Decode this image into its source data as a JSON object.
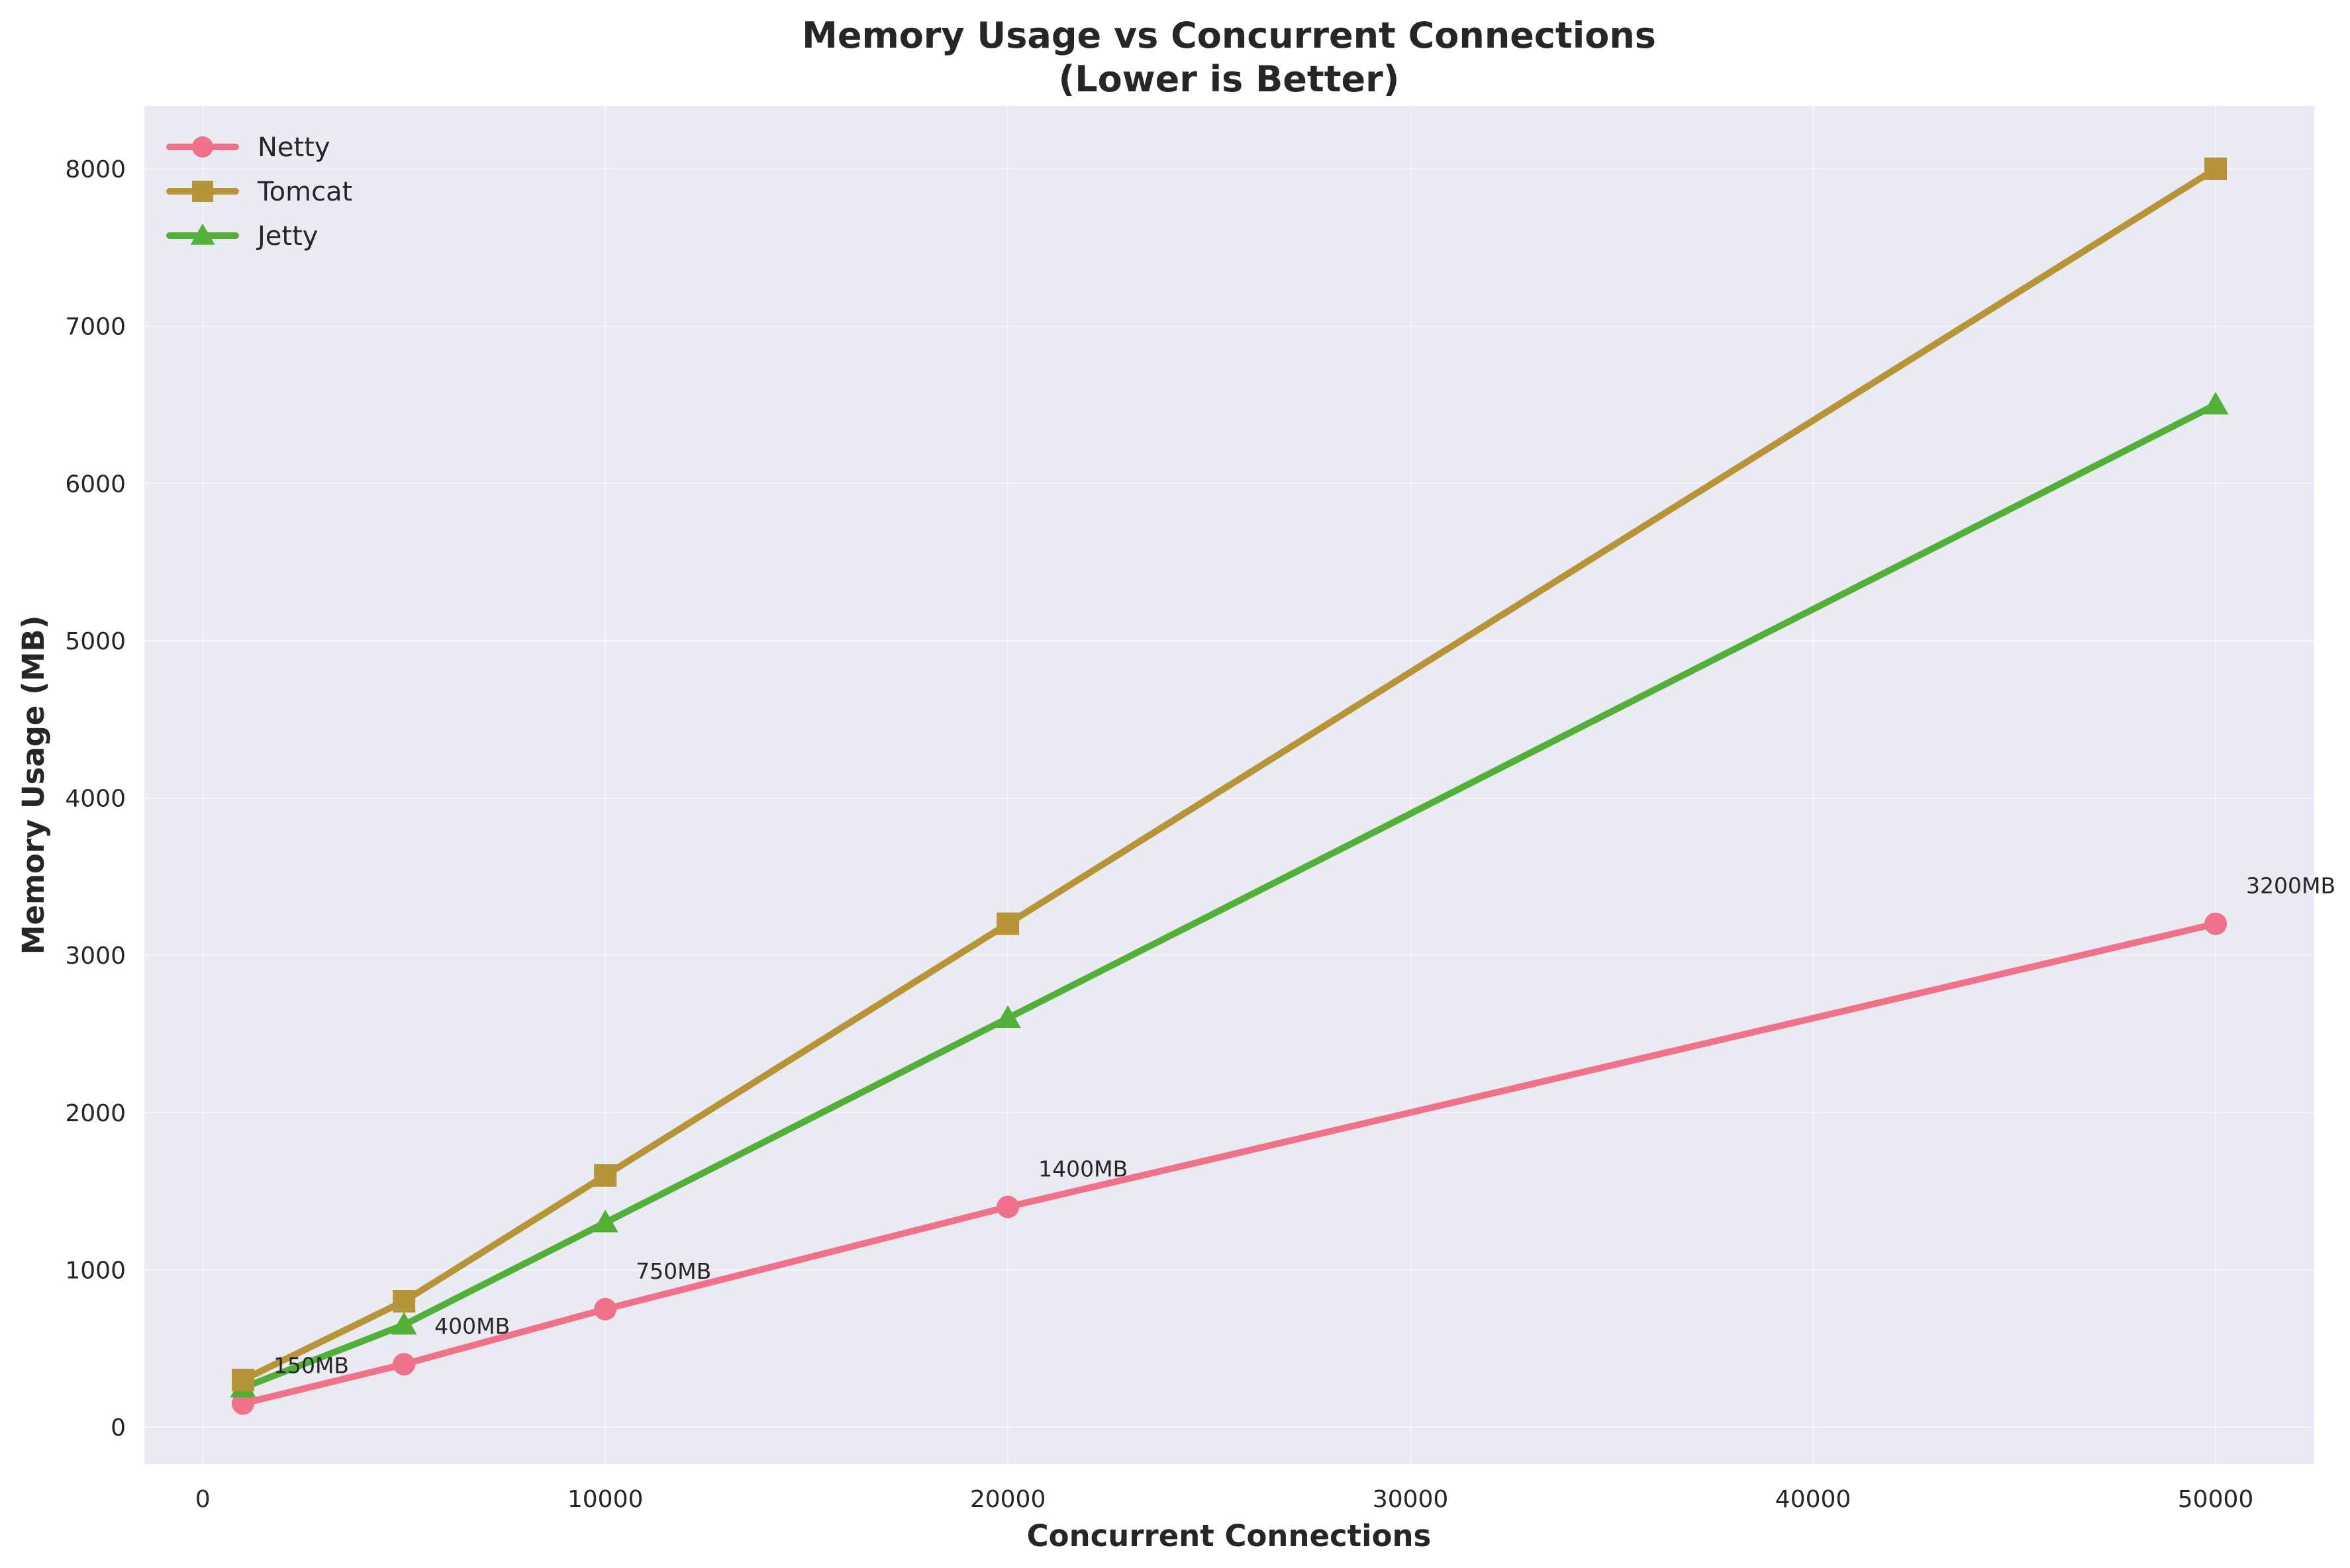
{
  "chart_data": {
    "type": "line",
    "title": "Memory Usage vs Concurrent Connections",
    "subtitle": "(Lower is Better)",
    "xlabel": "Concurrent Connections",
    "ylabel": "Memory Usage (MB)",
    "x": [
      1000,
      5000,
      10000,
      20000,
      50000
    ],
    "xlim": [
      -1450,
      52450
    ],
    "ylim": [
      -235,
      8400
    ],
    "xticks": [
      0,
      10000,
      20000,
      30000,
      40000,
      50000
    ],
    "yticks": [
      0,
      1000,
      2000,
      3000,
      4000,
      5000,
      6000,
      7000,
      8000
    ],
    "grid": true,
    "legend_position": "top-left",
    "series": [
      {
        "name": "Netty",
        "values": [
          150,
          400,
          750,
          1400,
          3200
        ],
        "color": "#f0718a",
        "marker": "circle"
      },
      {
        "name": "Tomcat",
        "values": [
          300,
          800,
          1600,
          3200,
          8000
        ],
        "color": "#b79438",
        "marker": "square"
      },
      {
        "name": "Jetty",
        "values": [
          250,
          650,
          1300,
          2600,
          6500
        ],
        "color": "#52b038",
        "marker": "triangle"
      }
    ],
    "annotations": [
      {
        "x": 1000,
        "y": 150,
        "text": "150MB"
      },
      {
        "x": 5000,
        "y": 400,
        "text": "400MB"
      },
      {
        "x": 10000,
        "y": 750,
        "text": "750MB"
      },
      {
        "x": 20000,
        "y": 1400,
        "text": "1400MB"
      },
      {
        "x": 50000,
        "y": 3200,
        "text": "3200MB"
      }
    ],
    "colors": {
      "plot_background": "#eaeaf2",
      "page_background": "#ffffff",
      "text": "#262626"
    }
  }
}
